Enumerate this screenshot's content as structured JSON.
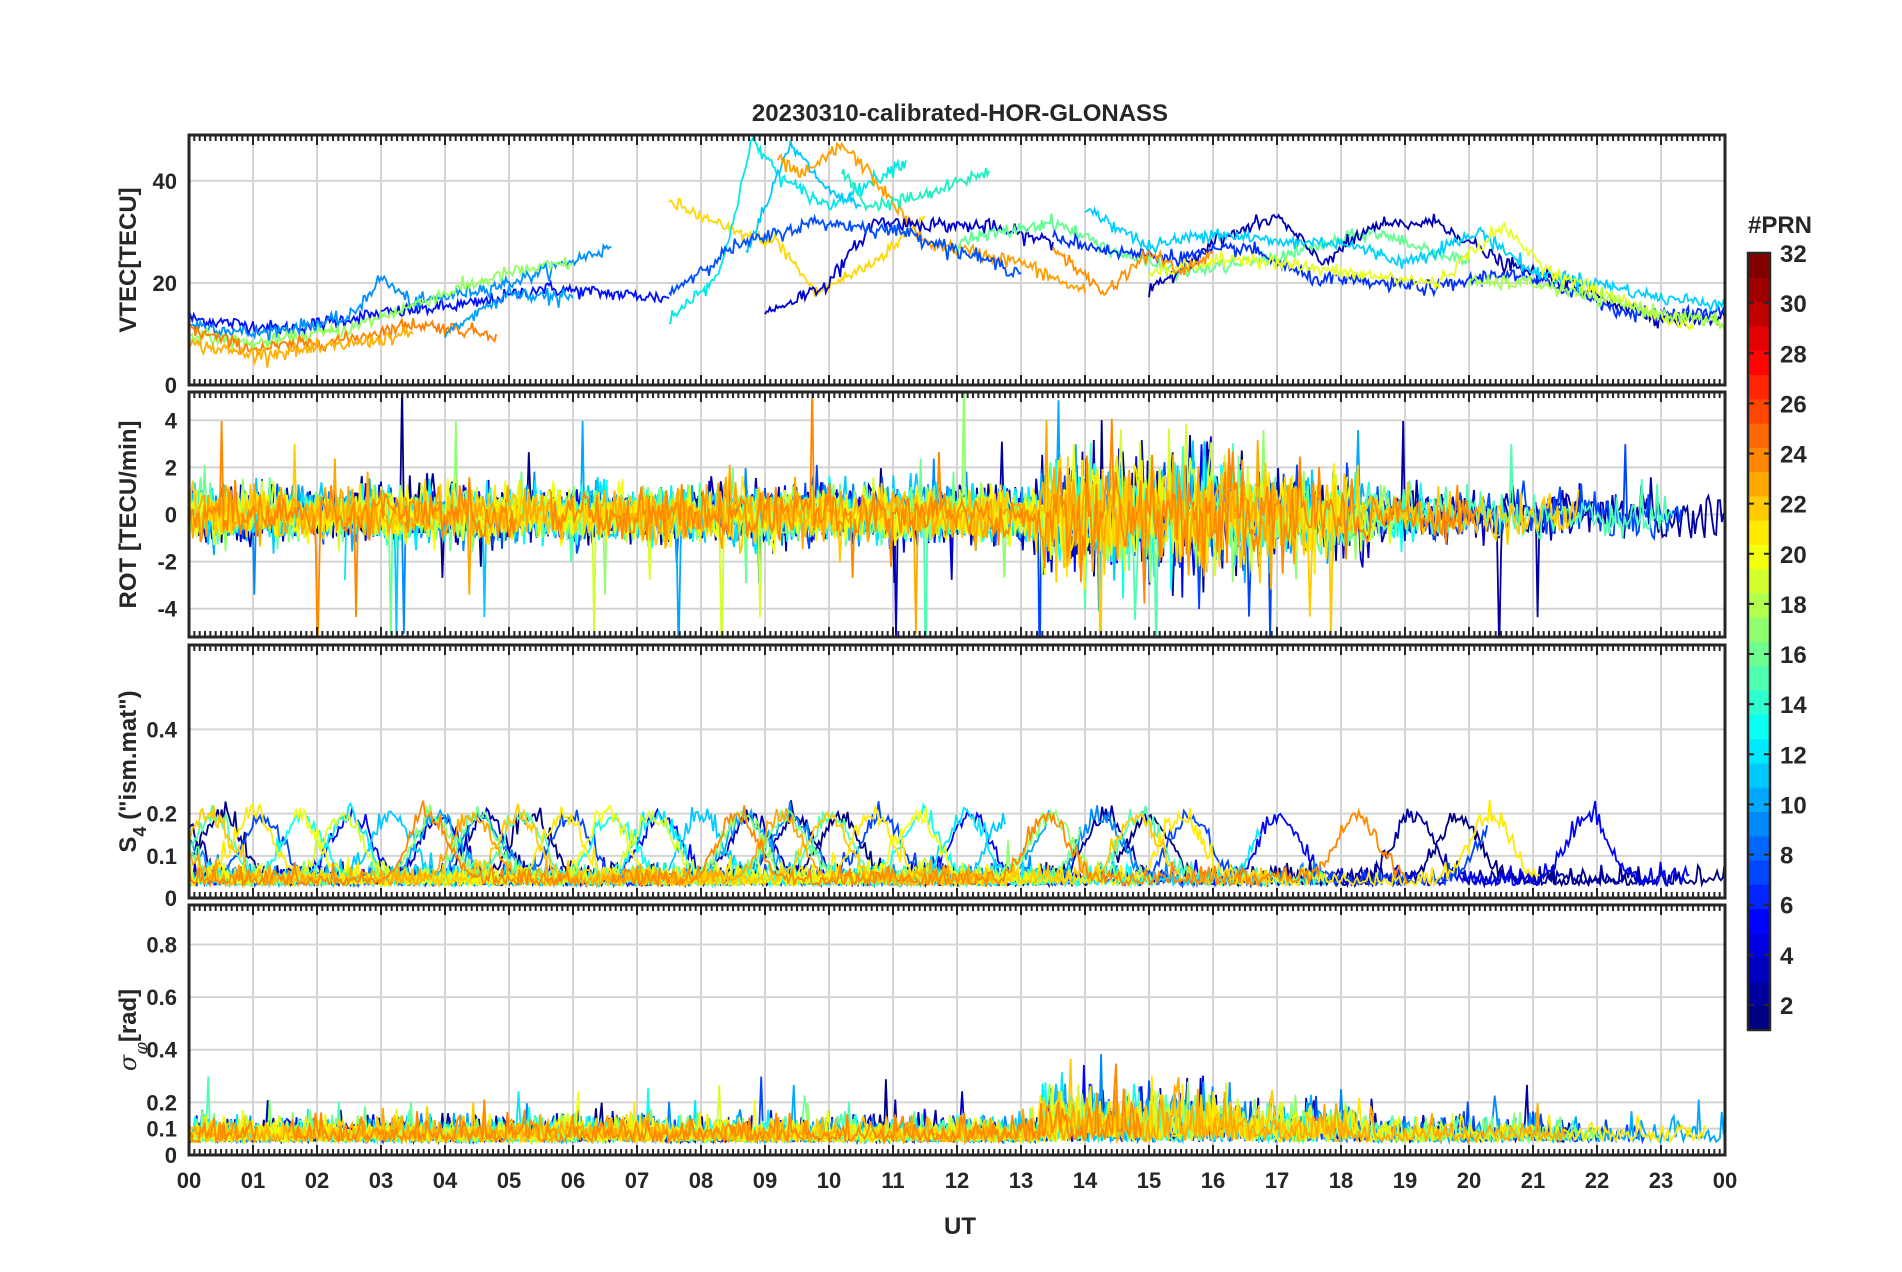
{
  "chart_data": {
    "type": "line",
    "title": "20230310-calibrated-HOR-GLONASS",
    "xlabel": "UT",
    "x_ticks": [
      "00",
      "01",
      "02",
      "03",
      "04",
      "05",
      "06",
      "07",
      "08",
      "09",
      "10",
      "11",
      "12",
      "13",
      "14",
      "15",
      "16",
      "17",
      "18",
      "19",
      "20",
      "21",
      "22",
      "23",
      "00"
    ],
    "x_range_hours": [
      0,
      24
    ],
    "grid": true,
    "colorbar": {
      "title": "#PRN",
      "range": [
        1,
        32
      ],
      "ticks": [
        "32",
        "30",
        "28",
        "26",
        "24",
        "22",
        "20",
        "18",
        "16",
        "14",
        "12",
        "10",
        "8",
        "6",
        "4",
        "2"
      ],
      "colormap": "jet",
      "placement": "right"
    },
    "panels": [
      {
        "id": "vtec",
        "ylabel": "VTEC[TECU]",
        "ylim": [
          0,
          49
        ],
        "yticks": [
          "0",
          "20",
          "40"
        ],
        "series": [
          {
            "prn": 3,
            "color": "#0010ff",
            "points": [
              [
                0,
                13
              ],
              [
                1.5,
                11
              ],
              [
                3,
                14
              ],
              [
                4.5,
                16
              ],
              [
                5.5,
                19
              ],
              [
                6.5,
                18
              ],
              [
                7.5,
                17
              ]
            ]
          },
          {
            "prn": 9,
            "color": "#0090ff",
            "points": [
              [
                0,
                12
              ],
              [
                1,
                10
              ],
              [
                2.5,
                13
              ],
              [
                3,
                21
              ],
              [
                3.5,
                16
              ],
              [
                5,
                20
              ],
              [
                6.6,
                27
              ]
            ]
          },
          {
            "prn": 17,
            "color": "#90ff60",
            "points": [
              [
                0,
                10
              ],
              [
                1,
                8
              ],
              [
                2.5,
                11
              ],
              [
                4,
                18
              ],
              [
                5,
                22
              ],
              [
                6,
                24
              ]
            ]
          },
          {
            "prn": 24,
            "color": "#ff8000",
            "points": [
              [
                0,
                11
              ],
              [
                1,
                7
              ],
              [
                2.5,
                9
              ],
              [
                3.5,
                12
              ],
              [
                4.8,
                10
              ]
            ]
          },
          {
            "prn": 21,
            "color": "#ffb000",
            "points": [
              [
                0,
                8
              ],
              [
                1,
                6
              ],
              [
                2,
                7
              ],
              [
                3.5,
                10
              ]
            ]
          },
          {
            "prn": 20,
            "color": "#ffd800",
            "points": [
              [
                7.5,
                36
              ],
              [
                8.5,
                30
              ],
              [
                9.2,
                28
              ],
              [
                9.8,
                18
              ],
              [
                10.7,
                24
              ],
              [
                11.5,
                33
              ]
            ]
          },
          {
            "prn": 13,
            "color": "#00e8e8",
            "points": [
              [
                7.5,
                13
              ],
              [
                8.3,
                22
              ],
              [
                8.8,
                48
              ],
              [
                9.3,
                40
              ],
              [
                10,
                35
              ],
              [
                11.2,
                44
              ]
            ]
          },
          {
            "prn": 11,
            "color": "#00c8ff",
            "points": [
              [
                8.7,
                26
              ],
              [
                9.4,
                47
              ],
              [
                10,
                38
              ],
              [
                10.5,
                35
              ]
            ]
          },
          {
            "prn": 22,
            "color": "#ffa000",
            "points": [
              [
                9.2,
                44
              ],
              [
                9.6,
                41
              ],
              [
                10.2,
                47
              ],
              [
                10.6,
                42
              ],
              [
                11.5,
                28
              ],
              [
                13,
                24
              ],
              [
                14,
                18
              ]
            ]
          },
          {
            "prn": 14,
            "color": "#20f0c0",
            "points": [
              [
                10.2,
                42
              ],
              [
                10.6,
                35
              ],
              [
                11.5,
                37
              ],
              [
                12.5,
                42
              ]
            ]
          },
          {
            "prn": 2,
            "color": "#0000d0",
            "points": [
              [
                9,
                14
              ],
              [
                10,
                20
              ],
              [
                10.7,
                32
              ],
              [
                12.5,
                31
              ],
              [
                13.5,
                28
              ]
            ]
          },
          {
            "prn": 7,
            "color": "#0050ff",
            "points": [
              [
                7.5,
                18
              ],
              [
                8.5,
                27
              ],
              [
                9.8,
                32
              ],
              [
                11.2,
                30
              ],
              [
                13,
                22
              ]
            ]
          },
          {
            "prn": 15,
            "color": "#60ff90",
            "points": [
              [
                12,
                28
              ],
              [
                13.5,
                32
              ],
              [
                14.5,
                26
              ],
              [
                15.5,
                22
              ],
              [
                17,
                25
              ],
              [
                18.5,
                30
              ],
              [
                20,
                24
              ]
            ]
          },
          {
            "prn": 1,
            "color": "#0000b0",
            "points": [
              [
                15,
                18
              ],
              [
                16,
                28
              ],
              [
                17,
                33
              ],
              [
                17.7,
                24
              ],
              [
                18.5,
                31
              ],
              [
                19.5,
                32
              ],
              [
                20.5,
                24
              ],
              [
                21.5,
                20
              ],
              [
                22.3,
                16
              ],
              [
                23,
                13
              ],
              [
                24,
                13
              ]
            ]
          },
          {
            "prn": 5,
            "color": "#0030ff",
            "points": [
              [
                13.5,
                29
              ],
              [
                14.5,
                26
              ],
              [
                15.5,
                25
              ],
              [
                16.5,
                27
              ],
              [
                17.5,
                21
              ],
              [
                18.5,
                20
              ],
              [
                19.5,
                19
              ],
              [
                20.5,
                22
              ],
              [
                21.5,
                19
              ],
              [
                22.5,
                14
              ],
              [
                24,
                14
              ]
            ]
          },
          {
            "prn": 12,
            "color": "#00d0ff",
            "points": [
              [
                14,
                35
              ],
              [
                15,
                27
              ],
              [
                16,
                30
              ],
              [
                17,
                28
              ],
              [
                18,
                28
              ],
              [
                19,
                24
              ],
              [
                20.2,
                30
              ],
              [
                21,
                22
              ],
              [
                22,
                20
              ],
              [
                23,
                17
              ],
              [
                24,
                16
              ]
            ]
          },
          {
            "prn": 19,
            "color": "#e8ff20",
            "points": [
              [
                15,
                22
              ],
              [
                16.5,
                25
              ],
              [
                18,
                22
              ],
              [
                19.5,
                20
              ],
              [
                20.5,
                31
              ],
              [
                21.3,
                22
              ],
              [
                22.5,
                16
              ],
              [
                23.5,
                11
              ]
            ]
          },
          {
            "prn": 23,
            "color": "#ff9000",
            "points": [
              [
                13.5,
                27
              ],
              [
                14.3,
                18
              ],
              [
                15,
                26
              ],
              [
                15.5,
                22
              ],
              [
                16,
                26
              ]
            ]
          },
          {
            "prn": 16,
            "color": "#a0ff50",
            "points": [
              [
                20,
                20
              ],
              [
                21,
                20
              ],
              [
                22,
                17
              ],
              [
                23,
                14
              ],
              [
                24,
                12
              ]
            ]
          },
          {
            "prn": 10,
            "color": "#00a0ff",
            "points": [
              [
                4,
                10
              ],
              [
                5,
                18
              ],
              [
                6,
                17
              ]
            ]
          }
        ]
      },
      {
        "id": "rot",
        "ylabel": "ROT [TECU/min]",
        "ylim": [
          -5.2,
          5.2
        ],
        "yticks": [
          "-4",
          "-2",
          "0",
          "2",
          "4"
        ]
      },
      {
        "id": "s4",
        "ylabel": "S4 (\"ism.mat\")",
        "ylabel_base": "S",
        "ylabel_sub": "4",
        "ylabel_rest": " (\"ism.mat\")",
        "ylim": [
          0,
          0.6
        ],
        "yticks": [
          "0",
          "0.1",
          "0.2",
          "0.4"
        ]
      },
      {
        "id": "sigma",
        "ylabel": "σφ[rad]",
        "ylabel_base": "σ",
        "ylabel_sub": "φ",
        "ylabel_rest": "[rad]",
        "ylim": [
          0,
          0.95
        ],
        "yticks": [
          "0",
          "0.1",
          "0.2",
          "0.4",
          "0.6",
          "0.8"
        ]
      }
    ]
  }
}
